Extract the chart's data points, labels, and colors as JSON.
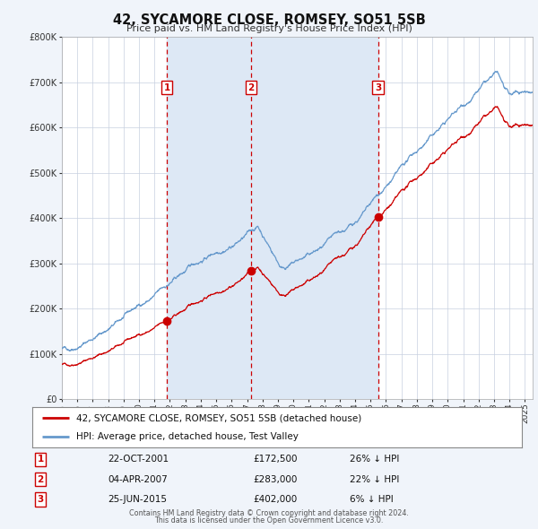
{
  "title": "42, SYCAMORE CLOSE, ROMSEY, SO51 5SB",
  "subtitle": "Price paid vs. HM Land Registry's House Price Index (HPI)",
  "legend_red": "42, SYCAMORE CLOSE, ROMSEY, SO51 5SB (detached house)",
  "legend_blue": "HPI: Average price, detached house, Test Valley",
  "sale_labels": [
    {
      "num": 1,
      "date": "22-OCT-2001",
      "price": "£172,500",
      "pct": "26%",
      "dir": "↓"
    },
    {
      "num": 2,
      "date": "04-APR-2007",
      "price": "£283,000",
      "pct": "22%",
      "dir": "↓"
    },
    {
      "num": 3,
      "date": "25-JUN-2015",
      "price": "£402,000",
      "pct": "6%",
      "dir": "↓"
    }
  ],
  "sale_dates_decimal": [
    2001.81,
    2007.26,
    2015.49
  ],
  "sale_prices": [
    172500,
    283000,
    402000
  ],
  "footer1": "Contains HM Land Registry data © Crown copyright and database right 2024.",
  "footer2": "This data is licensed under the Open Government Licence v3.0.",
  "bg_color": "#f0f4fa",
  "plot_bg": "#ffffff",
  "grid_color": "#c8d0e0",
  "red_color": "#cc0000",
  "blue_color": "#6699cc",
  "dashed_color": "#cc0000",
  "shade_color": "#dde8f5",
  "ylim": [
    0,
    800000
  ],
  "yticks": [
    0,
    100000,
    200000,
    300000,
    400000,
    500000,
    600000,
    700000,
    800000
  ],
  "xstart": 1995.0,
  "xend": 2025.5,
  "xticks": [
    1995,
    1996,
    1997,
    1998,
    1999,
    2000,
    2001,
    2002,
    2003,
    2004,
    2005,
    2006,
    2007,
    2008,
    2009,
    2010,
    2011,
    2012,
    2013,
    2014,
    2015,
    2016,
    2017,
    2018,
    2019,
    2020,
    2021,
    2022,
    2023,
    2024,
    2025
  ]
}
